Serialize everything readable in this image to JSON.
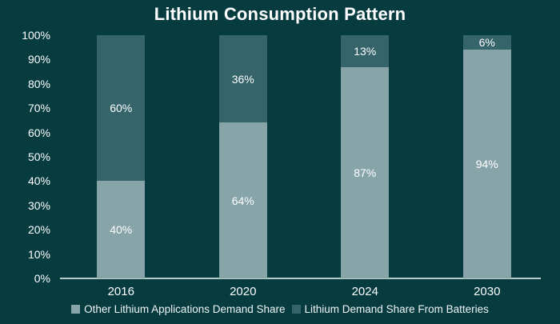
{
  "chart_data": {
    "type": "bar",
    "stacked": true,
    "title": "Lithium Consumption Pattern",
    "categories": [
      "2016",
      "2020",
      "2024",
      "2030"
    ],
    "series": [
      {
        "name": "Other Lithium Applications Demand Share",
        "values": [
          40,
          64,
          87,
          94
        ],
        "color": "#87a4a9",
        "stack_position": "bottom"
      },
      {
        "name": "Lithium Demand Share From Batteries",
        "values": [
          60,
          36,
          13,
          6
        ],
        "color": "#35646b",
        "stack_position": "top"
      }
    ],
    "value_suffix": "%",
    "y_ticks": [
      "0%",
      "10%",
      "20%",
      "30%",
      "40%",
      "50%",
      "60%",
      "70%",
      "80%",
      "90%",
      "100%"
    ],
    "ylim": [
      0,
      100
    ],
    "grid": false,
    "legend_position": "bottom",
    "colors": {
      "background": "#063b40",
      "axis_line": "#b9cdcd",
      "text": "#ffffff"
    }
  }
}
